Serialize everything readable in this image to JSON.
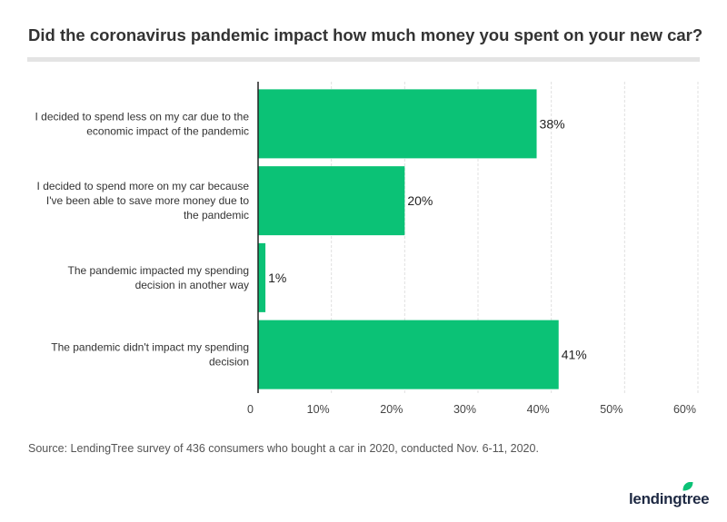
{
  "chart_data": {
    "type": "bar",
    "orientation": "horizontal",
    "title": "Did the coronavirus pandemic impact how much money you spent on your new car?",
    "categories": [
      [
        "I decided to spend less on my car due to the",
        "economic impact of the pandemic"
      ],
      [
        "I decided to spend more on my car because",
        "I've been able to save more money due to",
        "the pandemic"
      ],
      [
        "The pandemic impacted my spending",
        "decision in another way"
      ],
      [
        "The pandemic didn't impact my spending",
        "decision"
      ]
    ],
    "values": [
      38,
      20,
      1,
      41
    ],
    "data_labels": [
      "38%",
      "20%",
      "1%",
      "41%"
    ],
    "xlim": [
      0,
      60
    ],
    "xticks": [
      0,
      10,
      20,
      30,
      40,
      50,
      60
    ],
    "xtick_labels": [
      "0",
      "10%",
      "20%",
      "30%",
      "40%",
      "50%",
      "60%"
    ],
    "grid": "vertical",
    "bar_color": "#0bc276"
  },
  "source": "Source: LendingTree survey of 436 consumers who bought a car in 2020, conducted Nov. 6-11, 2020.",
  "logo": {
    "text": "lendingtree",
    "leaf_color": "#0bc276"
  }
}
